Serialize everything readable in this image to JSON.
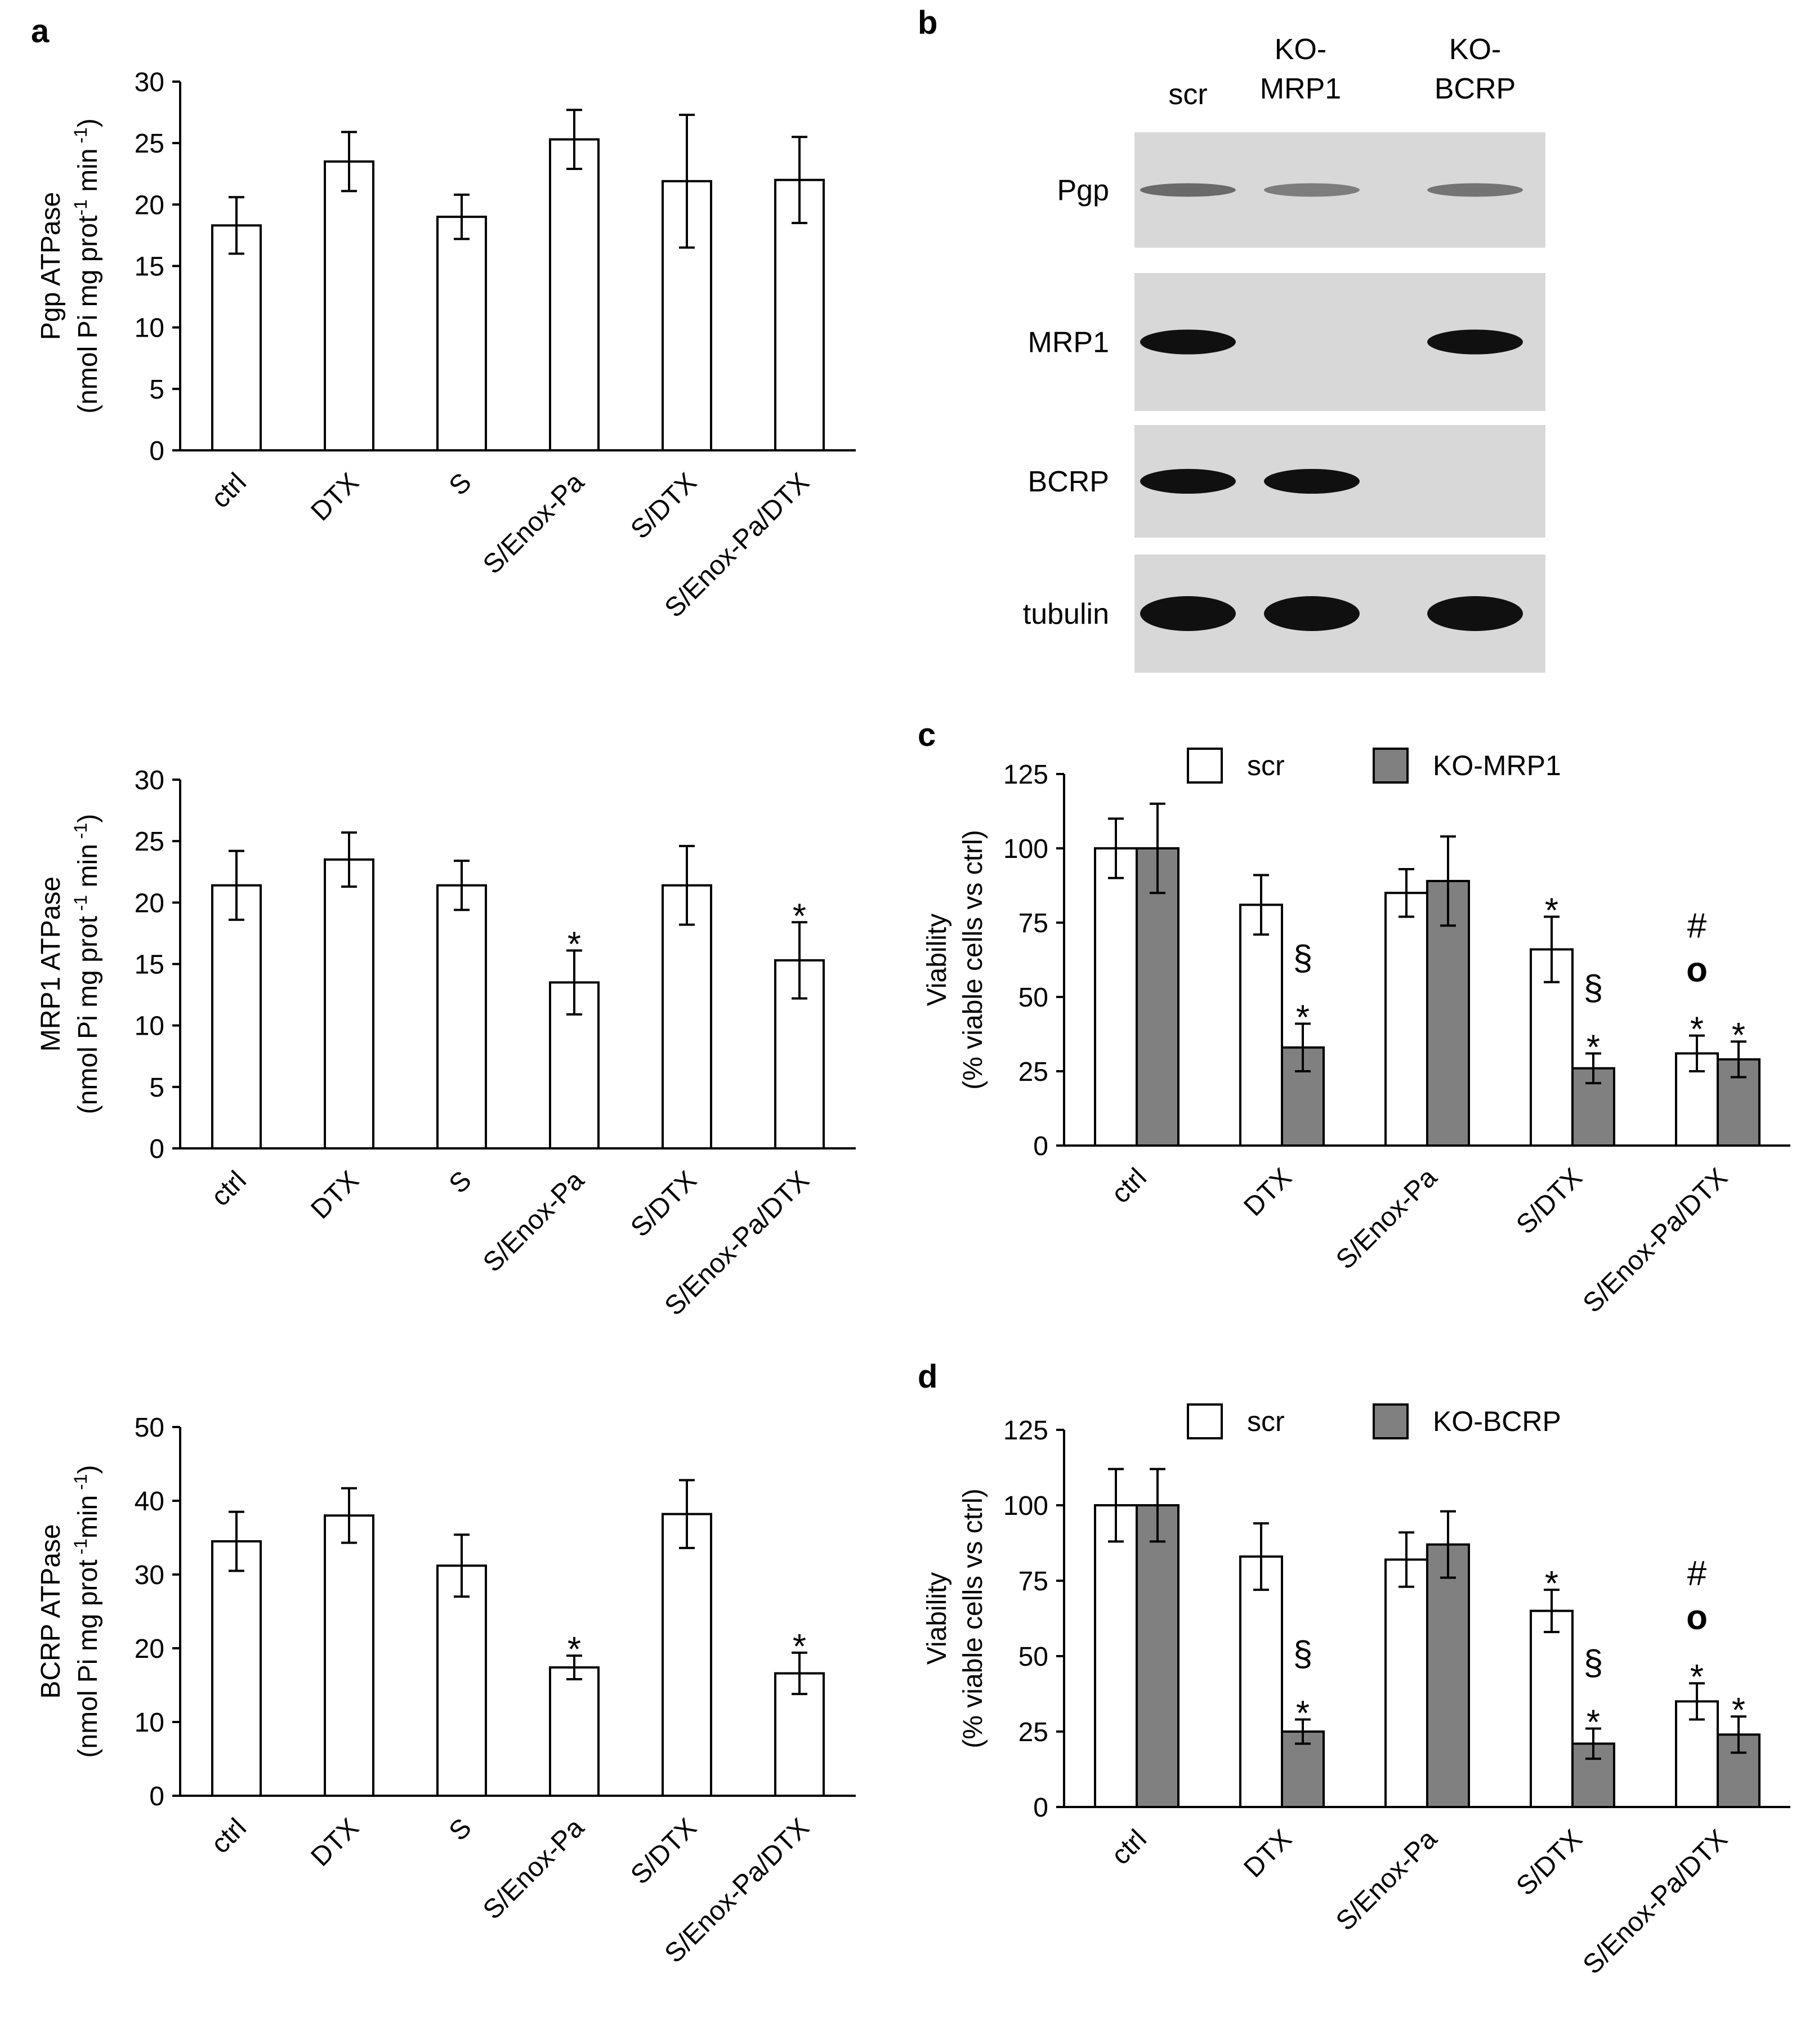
{
  "colors": {
    "bar_scr": "#ffffff",
    "bar_ko": "#808080",
    "axis": "#000000",
    "blot_bg": "#d8d8d8",
    "band": "#101010"
  },
  "panel_b": {
    "label": "b",
    "columns": [
      {
        "line1": "scr",
        "line2": ""
      },
      {
        "line1": "KO-",
        "line2": "MRP1"
      },
      {
        "line1": "KO-",
        "line2": "BCRP"
      }
    ],
    "rows": [
      {
        "label": "Pgp",
        "bands": [
          0.55,
          0.45,
          0.5
        ]
      },
      {
        "label": "MRP1",
        "bands": [
          1,
          0,
          1
        ]
      },
      {
        "label": "BCRP",
        "bands": [
          1,
          1,
          0
        ]
      },
      {
        "label": "tubulin",
        "bands": [
          1,
          1,
          1
        ]
      }
    ]
  },
  "chart_data": [
    {
      "id": "a1",
      "panel_label": "a",
      "type": "bar",
      "ylabel": [
        "Pgp ATPase",
        "(nmol Pi mg prot",
        "-1",
        " min",
        " -1",
        ")"
      ],
      "ylim": [
        0,
        30
      ],
      "yticks": [
        0,
        5,
        10,
        15,
        20,
        25,
        30
      ],
      "categories": [
        "ctrl",
        "DTX",
        "S",
        "S/Enox-Pa",
        "S/DTX",
        "S/Enox-Pa/DTX"
      ],
      "series": [
        {
          "name": "",
          "values": [
            18.3,
            23.5,
            19.0,
            25.3,
            21.9,
            22.0
          ],
          "errors": [
            2.3,
            2.4,
            1.8,
            2.4,
            5.4,
            3.5
          ],
          "annotations": [
            [],
            [],
            [],
            [],
            [],
            []
          ]
        }
      ]
    },
    {
      "id": "a2",
      "panel_label": "",
      "type": "bar",
      "ylabel": [
        "MRP1  ATPase",
        "(nmol Pi mg prot",
        " -1",
        " min",
        " -1",
        ")"
      ],
      "ylim": [
        0,
        30
      ],
      "yticks": [
        0,
        5,
        10,
        15,
        20,
        25,
        30
      ],
      "categories": [
        "ctrl",
        "DTX",
        "S",
        "S/Enox-Pa",
        "S/DTX",
        "S/Enox-Pa/DTX"
      ],
      "series": [
        {
          "name": "",
          "values": [
            21.4,
            23.5,
            21.4,
            13.5,
            21.4,
            15.3
          ],
          "errors": [
            2.8,
            2.2,
            2.0,
            2.6,
            3.2,
            3.1
          ],
          "annotations": [
            [],
            [],
            [],
            [
              "*"
            ],
            [],
            [
              "*"
            ]
          ]
        }
      ]
    },
    {
      "id": "a3",
      "panel_label": "",
      "type": "bar",
      "ylabel": [
        "BCRP  ATPase",
        "(nmol Pi mg prot",
        " -1",
        "min",
        " -1",
        ")"
      ],
      "ylim": [
        0,
        50
      ],
      "yticks": [
        0,
        10,
        20,
        30,
        40,
        50
      ],
      "categories": [
        "ctrl",
        "DTX",
        "S",
        "S/Enox-Pa",
        "S/DTX",
        "S/Enox-Pa/DTX"
      ],
      "series": [
        {
          "name": "",
          "values": [
            34.5,
            38.0,
            31.2,
            17.4,
            38.2,
            16.6
          ],
          "errors": [
            4.0,
            3.7,
            4.2,
            1.6,
            4.6,
            2.8
          ],
          "annotations": [
            [],
            [],
            [],
            [
              "*"
            ],
            [],
            [
              "*"
            ]
          ]
        }
      ]
    },
    {
      "id": "c",
      "panel_label": "c",
      "type": "bar",
      "ylabel": [
        "Viability",
        "(% viable cells vs ctrl)"
      ],
      "ylim": [
        0,
        125
      ],
      "yticks": [
        0,
        25,
        50,
        75,
        100,
        125
      ],
      "categories": [
        "ctrl",
        "DTX",
        "S/Enox-Pa",
        "S/DTX",
        "S/Enox-Pa/DTX"
      ],
      "legend": [
        "scr",
        "KO-MRP1"
      ],
      "series": [
        {
          "name": "scr",
          "values": [
            100,
            81,
            85,
            66,
            31
          ],
          "errors": [
            10,
            10,
            8,
            11,
            6
          ],
          "annotations": [
            [],
            [],
            [],
            [
              "*"
            ],
            [
              "*",
              "o",
              "#"
            ]
          ]
        },
        {
          "name": "KO-MRP1",
          "values": [
            100,
            33,
            89,
            26,
            29
          ],
          "errors": [
            15,
            8,
            15,
            5,
            6
          ],
          "annotations": [
            [],
            [
              "*",
              "§"
            ],
            [],
            [
              "*",
              "§"
            ],
            [
              "*"
            ]
          ]
        }
      ]
    },
    {
      "id": "d",
      "panel_label": "d",
      "type": "bar",
      "ylabel": [
        "Viability",
        "(% viable cells vs ctrl)"
      ],
      "ylim": [
        0,
        125
      ],
      "yticks": [
        0,
        25,
        50,
        75,
        100,
        125
      ],
      "categories": [
        "ctrl",
        "DTX",
        "S/Enox-Pa",
        "S/DTX",
        "S/Enox-Pa/DTX"
      ],
      "legend": [
        "scr",
        "KO-BCRP"
      ],
      "series": [
        {
          "name": "scr",
          "values": [
            100,
            83,
            82,
            65,
            35
          ],
          "errors": [
            12,
            11,
            9,
            7,
            6
          ],
          "annotations": [
            [],
            [],
            [],
            [
              "*"
            ],
            [
              "*",
              "o",
              "#"
            ]
          ]
        },
        {
          "name": "KO-BCRP",
          "values": [
            100,
            25,
            87,
            21,
            24
          ],
          "errors": [
            12,
            4,
            11,
            5,
            6
          ],
          "annotations": [
            [],
            [
              "*",
              "§"
            ],
            [],
            [
              "*",
              "§"
            ],
            [
              "*"
            ]
          ]
        }
      ]
    }
  ]
}
